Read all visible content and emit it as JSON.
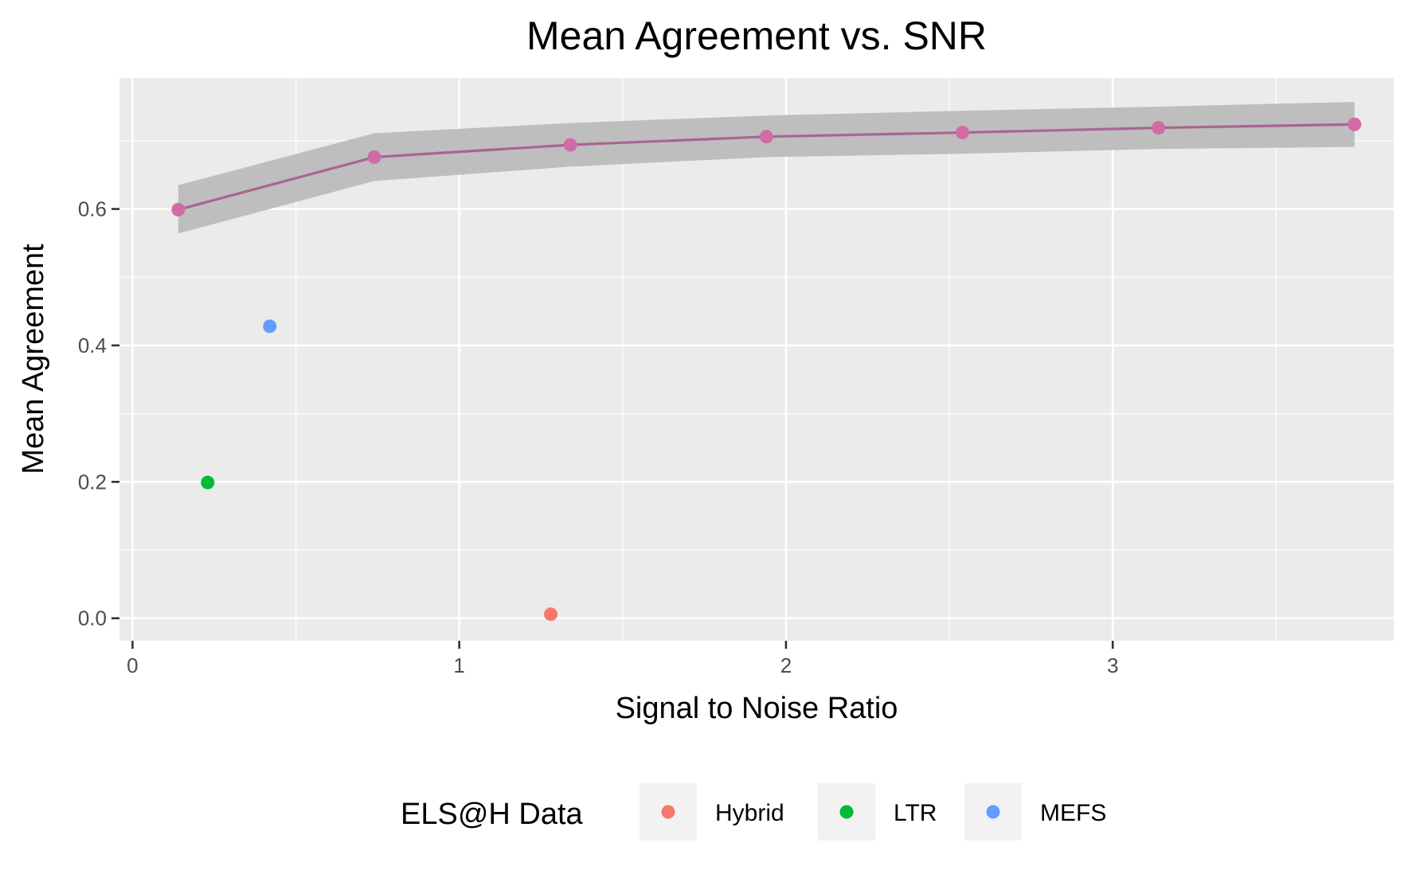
{
  "chart_data": {
    "type": "scatter",
    "title": "Mean Agreement vs. SNR",
    "xlabel": "Signal to Noise Ratio",
    "ylabel": "Mean Agreement",
    "xlim": [
      -0.04,
      3.86
    ],
    "ylim": [
      -0.033,
      0.792
    ],
    "x_ticks": [
      0,
      1,
      2,
      3
    ],
    "x_tick_labels": [
      "0",
      "1",
      "2",
      "3"
    ],
    "y_ticks": [
      0.0,
      0.2,
      0.4,
      0.6
    ],
    "y_tick_labels": [
      "0.0",
      "0.2",
      "0.4",
      "0.6"
    ],
    "grid": true,
    "background": "#ebebeb",
    "legend_position": "bottom",
    "legend_title": "ELS@H Data",
    "trend": {
      "color": "#a86590",
      "point_color": "#d16ba5",
      "ribbon_color": "#bebebe",
      "x": [
        0.14,
        0.74,
        1.34,
        1.94,
        2.54,
        3.14,
        3.74
      ],
      "y": [
        0.599,
        0.676,
        0.694,
        0.706,
        0.712,
        0.719,
        0.724
      ],
      "lower": [
        0.564,
        0.641,
        0.662,
        0.676,
        0.681,
        0.688,
        0.691
      ],
      "upper": [
        0.635,
        0.711,
        0.726,
        0.737,
        0.744,
        0.75,
        0.757
      ]
    },
    "series": [
      {
        "name": "Hybrid",
        "color": "#f8766d",
        "x": [
          1.28
        ],
        "y": [
          0.006
        ]
      },
      {
        "name": "LTR",
        "color": "#00ba38",
        "x": [
          0.23
        ],
        "y": [
          0.199
        ]
      },
      {
        "name": "MEFS",
        "color": "#619cff",
        "x": [
          0.42
        ],
        "y": [
          0.428
        ]
      }
    ]
  }
}
